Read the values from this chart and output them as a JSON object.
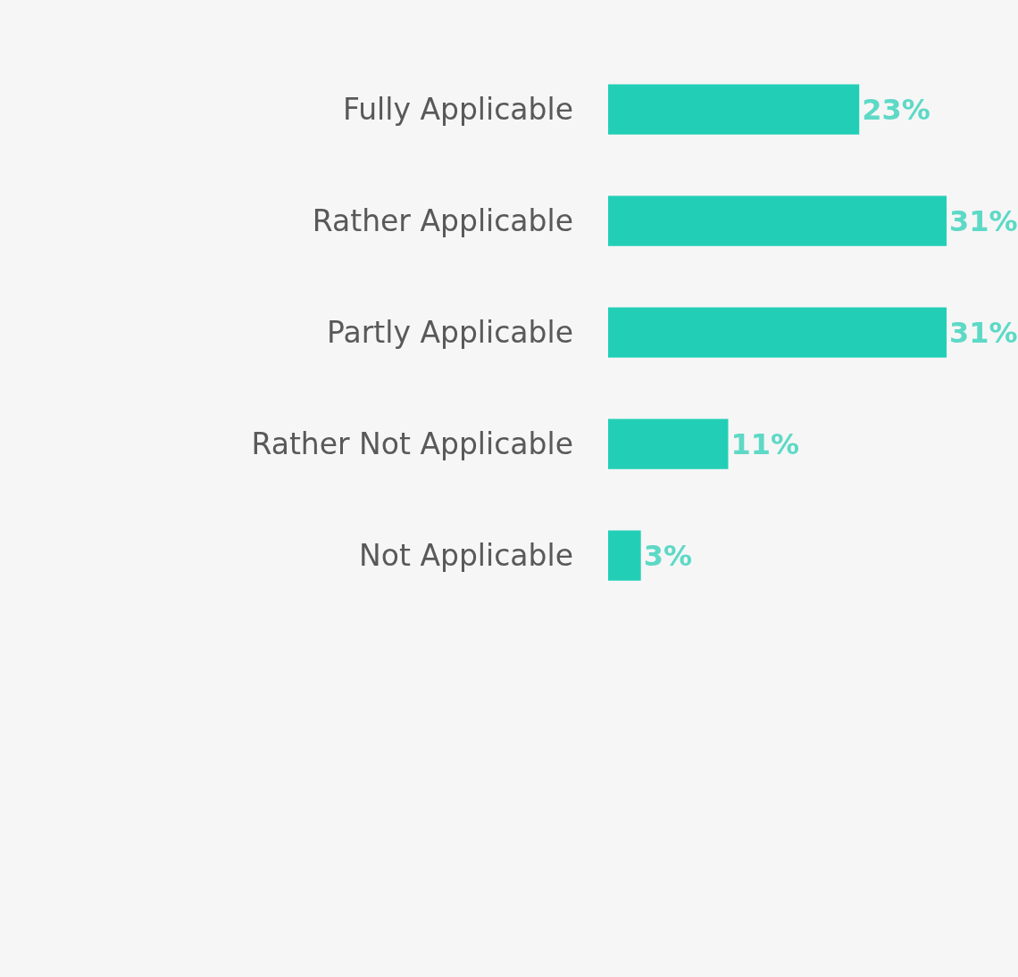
{
  "chart_data": {
    "type": "bar",
    "orientation": "horizontal",
    "categories": [
      "Fully Applicable",
      "Rather Applicable",
      "Partly Applicable",
      "Rather Not Applicable",
      "Not Applicable"
    ],
    "values": [
      23,
      31,
      31,
      11,
      3
    ],
    "value_labels": [
      "23%",
      "31%",
      "31%",
      "11%",
      "3%"
    ],
    "color": "#22cfb6",
    "tick_labels": "y"
  }
}
